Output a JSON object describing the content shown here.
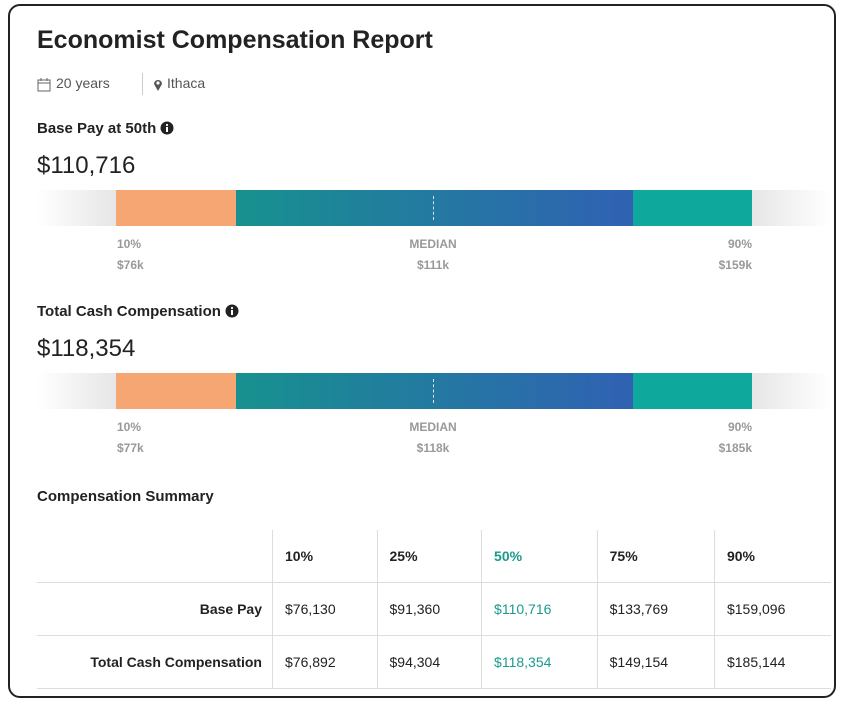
{
  "header": {
    "title": "Economist Compensation Report",
    "meta": [
      "20 years",
      "Ithaca"
    ]
  },
  "sections": [
    {
      "label": "Base Pay at 50th",
      "amount": "$110,716",
      "markers": [
        {
          "pct": "10%",
          "value": "$76k"
        },
        {
          "pct": "MEDIAN",
          "value": "$111k"
        },
        {
          "pct": "90%",
          "value": "$159k"
        }
      ]
    },
    {
      "label": "Total Cash Compensation",
      "amount": "$118,354",
      "markers": [
        {
          "pct": "10%",
          "value": "$77k"
        },
        {
          "pct": "MEDIAN",
          "value": "$118k"
        },
        {
          "pct": "90%",
          "value": "$185k"
        }
      ]
    }
  ],
  "summary": {
    "title": "Compensation Summary",
    "columns": [
      "10%",
      "25%",
      "50%",
      "75%",
      "90%"
    ],
    "rows": [
      {
        "label": "Base Pay",
        "values": [
          "$76,130",
          "$91,360",
          "$110,716",
          "$133,769",
          "$159,096"
        ]
      },
      {
        "label": "Total Cash Compensation",
        "values": [
          "$76,892",
          "$94,304",
          "$118,354",
          "$149,154",
          "$185,144"
        ]
      }
    ]
  }
}
